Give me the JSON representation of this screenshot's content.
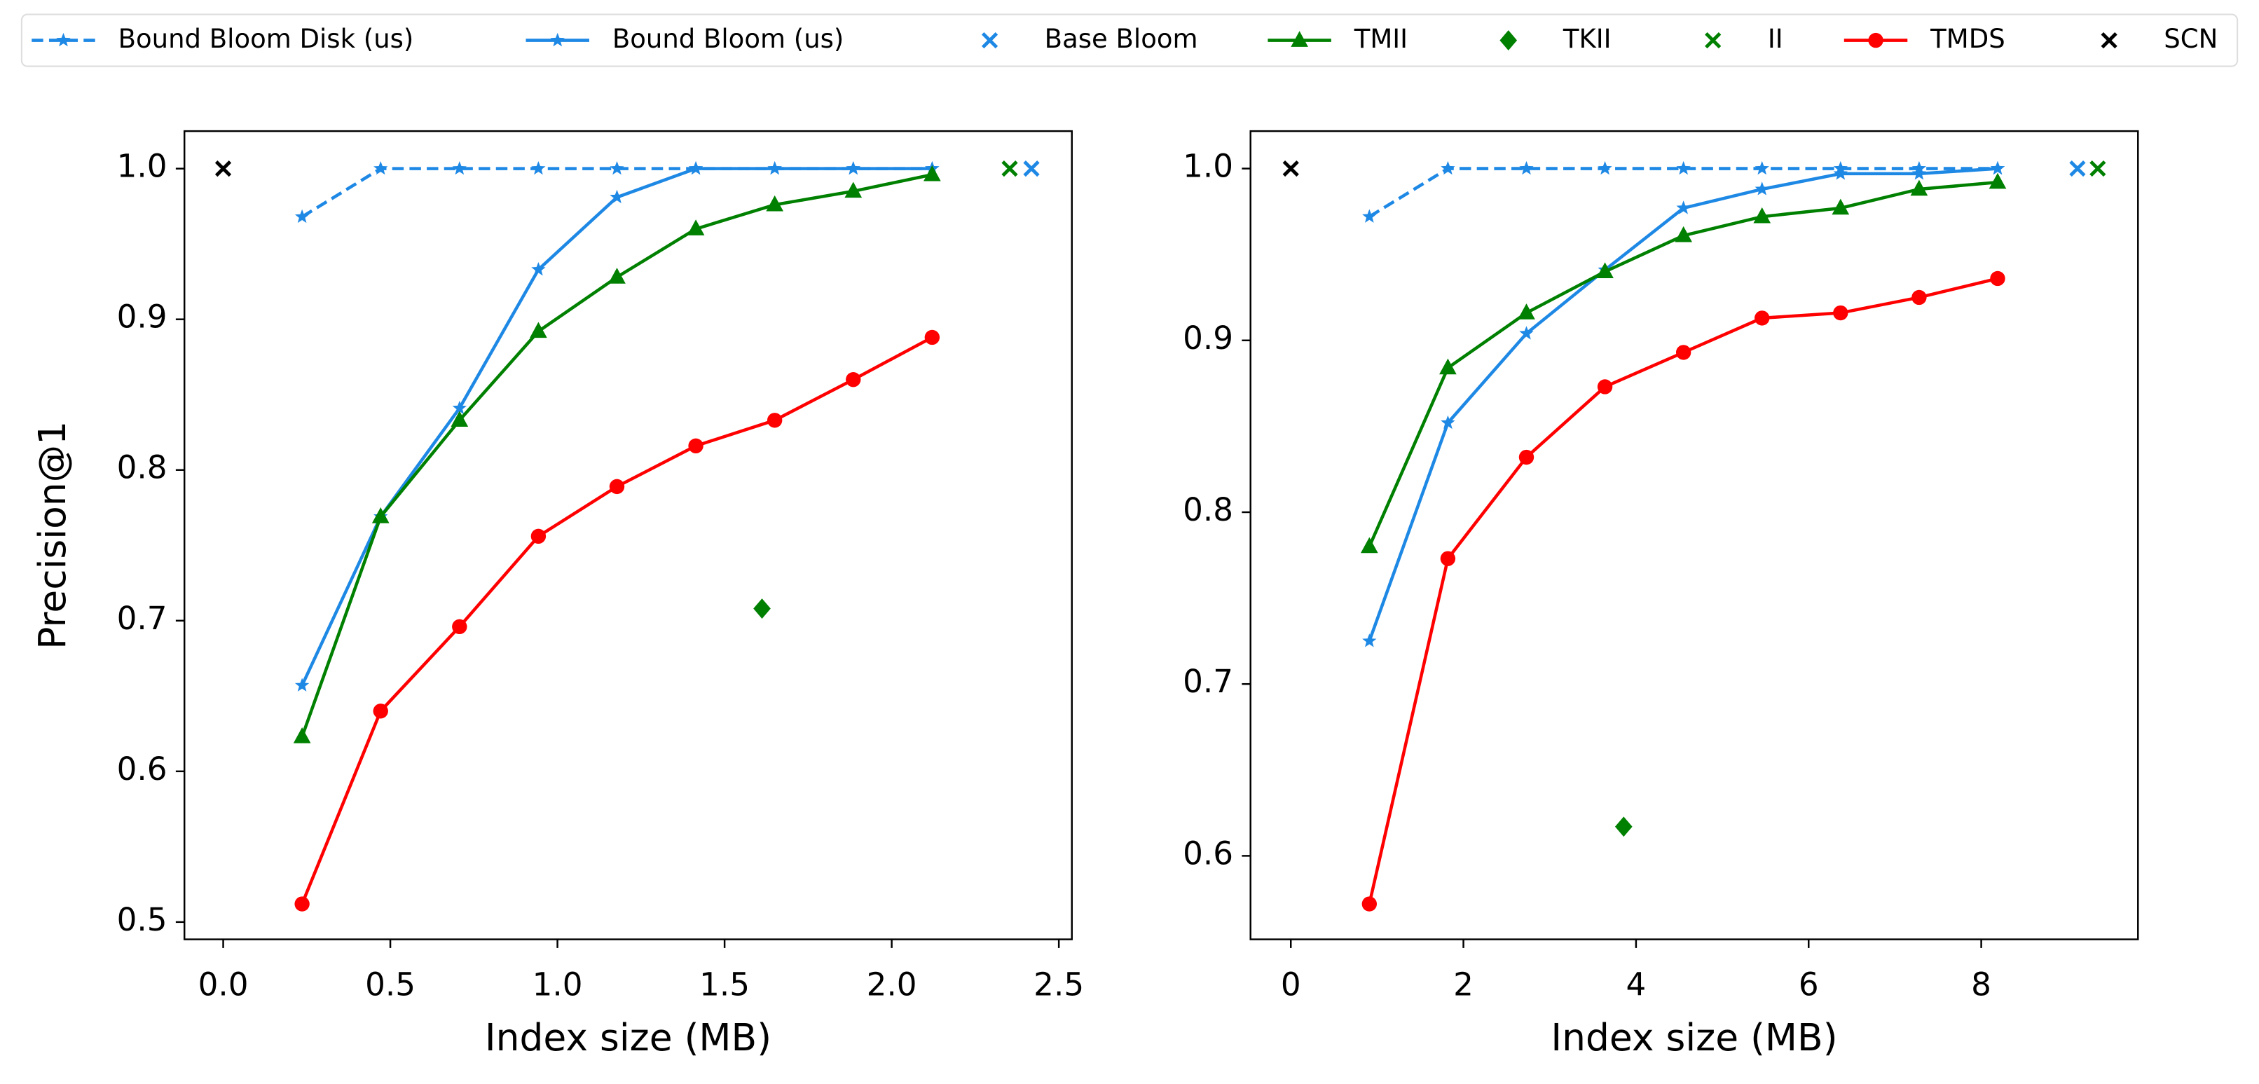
{
  "chart_data": [
    {
      "type": "line",
      "xlabel": "Index size (MB)",
      "ylabel": "Precision@1",
      "xlim": [
        -0.116,
        2.539
      ],
      "ylim": [
        0.4885,
        1.0249
      ],
      "xticks": [
        {
          "value": 0,
          "label": "0.0"
        },
        0.5,
        {
          "value": 1,
          "label": "1.0"
        },
        1.5,
        {
          "value": 2,
          "label": "2.0"
        },
        2.5
      ],
      "yticks": [
        0.5,
        0.6,
        0.7,
        0.8,
        0.9,
        {
          "value": 1,
          "label": "1.0"
        }
      ],
      "x": [
        0.236,
        0.471,
        0.707,
        0.943,
        1.178,
        1.414,
        1.65,
        1.885,
        2.121
      ],
      "series": [
        {
          "name": "Bound Bloom Disk (us)",
          "color": "#1e88e5",
          "marker": "star",
          "linestyle": "dashed",
          "values": [
            0.968,
            1.0,
            1.0,
            1.0,
            1.0,
            1.0,
            1.0,
            1.0,
            1.0
          ]
        },
        {
          "name": "Bound Bloom (us)",
          "color": "#1e88e5",
          "marker": "star",
          "linestyle": "solid",
          "values": [
            0.657,
            0.769,
            0.841,
            0.933,
            0.981,
            1.0,
            1.0,
            1.0,
            1.0
          ]
        },
        {
          "name": "Base Bloom",
          "color": "#1e88e5",
          "marker": "x",
          "linestyle": "none",
          "x": [
            2.418
          ],
          "values": [
            1.0
          ]
        },
        {
          "name": "TMII",
          "color": "#008000",
          "marker": "triangle",
          "linestyle": "solid",
          "values": [
            0.623,
            0.769,
            0.833,
            0.892,
            0.928,
            0.96,
            0.976,
            0.985,
            0.996
          ]
        },
        {
          "name": "TKII",
          "color": "#008000",
          "marker": "diamond",
          "linestyle": "none",
          "x": [
            1.612
          ],
          "values": [
            0.708
          ]
        },
        {
          "name": "II",
          "color": "#008000",
          "marker": "x",
          "linestyle": "none",
          "x": [
            2.353
          ],
          "values": [
            1.0
          ]
        },
        {
          "name": "TMDS",
          "color": "#ff0000",
          "marker": "circle",
          "linestyle": "solid",
          "values": [
            0.512,
            0.64,
            0.696,
            0.756,
            0.789,
            0.816,
            0.833,
            0.86,
            0.888
          ]
        },
        {
          "name": "SCN",
          "color": "#000000",
          "marker": "x",
          "linestyle": "none",
          "x": [
            0
          ],
          "values": [
            1.0
          ]
        }
      ]
    },
    {
      "type": "line",
      "xlabel": "Index size (MB)",
      "xlim": [
        -0.467,
        9.816
      ],
      "ylim": [
        0.5514,
        1.0218
      ],
      "xticks": [
        0,
        2,
        4,
        6,
        8
      ],
      "yticks": [
        0.6,
        0.7,
        0.8,
        0.9,
        {
          "value": 1,
          "label": "1.0"
        }
      ],
      "x": [
        0.91,
        1.82,
        2.73,
        3.64,
        4.55,
        5.46,
        6.37,
        7.28,
        8.19
      ],
      "series": [
        {
          "color": "#1e88e5",
          "marker": "star",
          "linestyle": "dashed",
          "values": [
            0.972,
            1.0,
            1.0,
            1.0,
            1.0,
            1.0,
            1.0,
            1.0,
            1.0
          ]
        },
        {
          "color": "#1e88e5",
          "marker": "star",
          "linestyle": "solid",
          "values": [
            0.725,
            0.852,
            0.904,
            0.941,
            0.977,
            0.988,
            0.997,
            0.997,
            1.0
          ]
        },
        {
          "color": "#1e88e5",
          "marker": "x",
          "linestyle": "none",
          "x": [
            9.115
          ],
          "values": [
            1.0
          ]
        },
        {
          "color": "#008000",
          "marker": "triangle",
          "linestyle": "solid",
          "values": [
            0.78,
            0.884,
            0.916,
            0.94,
            0.961,
            0.972,
            0.977,
            0.988,
            0.992
          ]
        },
        {
          "color": "#008000",
          "marker": "diamond",
          "linestyle": "none",
          "x": [
            3.857
          ],
          "values": [
            0.617
          ]
        },
        {
          "color": "#008000",
          "marker": "x",
          "linestyle": "none",
          "x": [
            9.35
          ],
          "values": [
            1.0
          ]
        },
        {
          "color": "#ff0000",
          "marker": "circle",
          "linestyle": "solid",
          "values": [
            0.572,
            0.773,
            0.832,
            0.873,
            0.893,
            0.913,
            0.916,
            0.925,
            0.936
          ]
        },
        {
          "color": "#000000",
          "marker": "x",
          "linestyle": "none",
          "x": [
            0
          ],
          "values": [
            1.0
          ]
        }
      ]
    }
  ]
}
